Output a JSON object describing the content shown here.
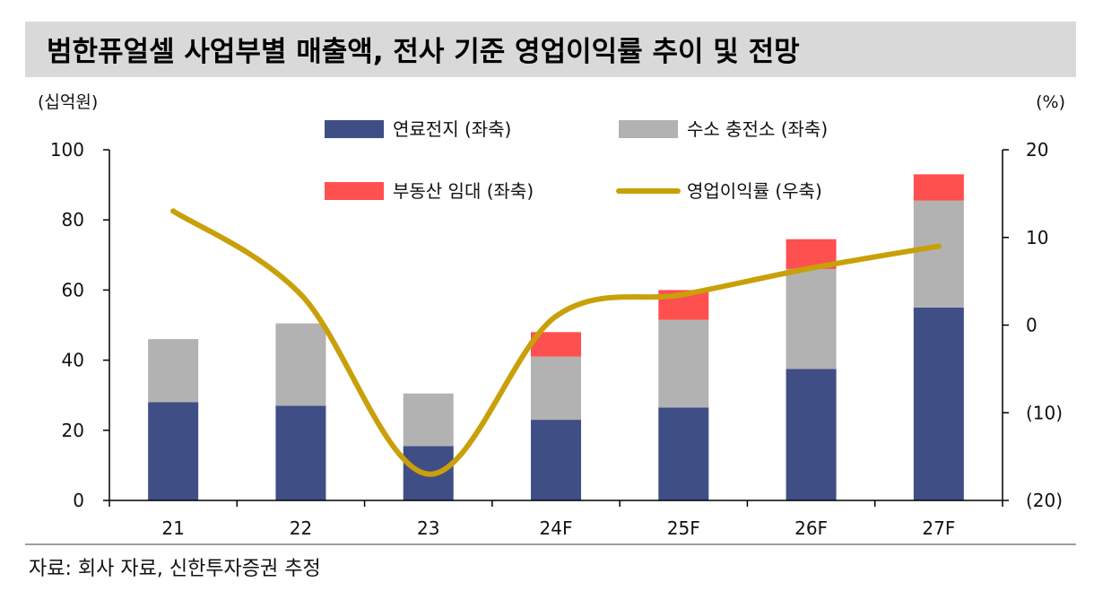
{
  "title": "범한퓨얼셀 사업부별 매출액, 전사 기준 영업이익률 추이 및 전망",
  "source": "자료: 회사 자료, 신한투자증권 추정",
  "colors": {
    "fuel_cell": "#404e86",
    "hydrogen_charging": "#b2b2b2",
    "real_estate": "#ff5050",
    "operating_margin": "#c9a00a",
    "title_bg": "#d9d9d9"
  },
  "chart_data": {
    "type": "bar",
    "stacked": true,
    "title": "범한퓨얼셀 사업부별 매출액, 전사 기준 영업이익률 추이 및 전망",
    "categories": [
      "21",
      "22",
      "23",
      "24F",
      "25F",
      "26F",
      "27F"
    ],
    "series": [
      {
        "name": "연료전지 (좌축)",
        "type": "bar",
        "axis": "left",
        "color_key": "fuel_cell",
        "values": [
          28,
          27,
          15.5,
          23,
          26.5,
          37.5,
          55
        ]
      },
      {
        "name": "수소 충전소 (좌축)",
        "type": "bar",
        "axis": "left",
        "color_key": "hydrogen_charging",
        "values": [
          18,
          23.5,
          15,
          18,
          25,
          28.5,
          30.5
        ]
      },
      {
        "name": "부동산 임대 (좌축)",
        "type": "bar",
        "axis": "left",
        "color_key": "real_estate",
        "values": [
          0,
          0,
          0,
          7,
          8.5,
          8.5,
          7.5
        ]
      },
      {
        "name": "영업이익률 (우축)",
        "type": "line",
        "axis": "right",
        "color_key": "operating_margin",
        "values": [
          13,
          3.5,
          -17,
          1,
          3.5,
          6.5,
          9
        ]
      }
    ],
    "left_axis": {
      "label": "(십억원)",
      "range": [
        0,
        100
      ],
      "ticks": [
        0,
        20,
        40,
        60,
        80,
        100
      ],
      "tick_labels": [
        "0",
        "20",
        "40",
        "60",
        "80",
        "100"
      ]
    },
    "right_axis": {
      "label": "(%)",
      "range": [
        -20,
        20
      ],
      "ticks": [
        -20,
        -10,
        0,
        10,
        20
      ],
      "tick_labels": [
        "(20)",
        "(10)",
        "0",
        "10",
        "20"
      ]
    },
    "legend_position": "top-center",
    "grid": false
  }
}
